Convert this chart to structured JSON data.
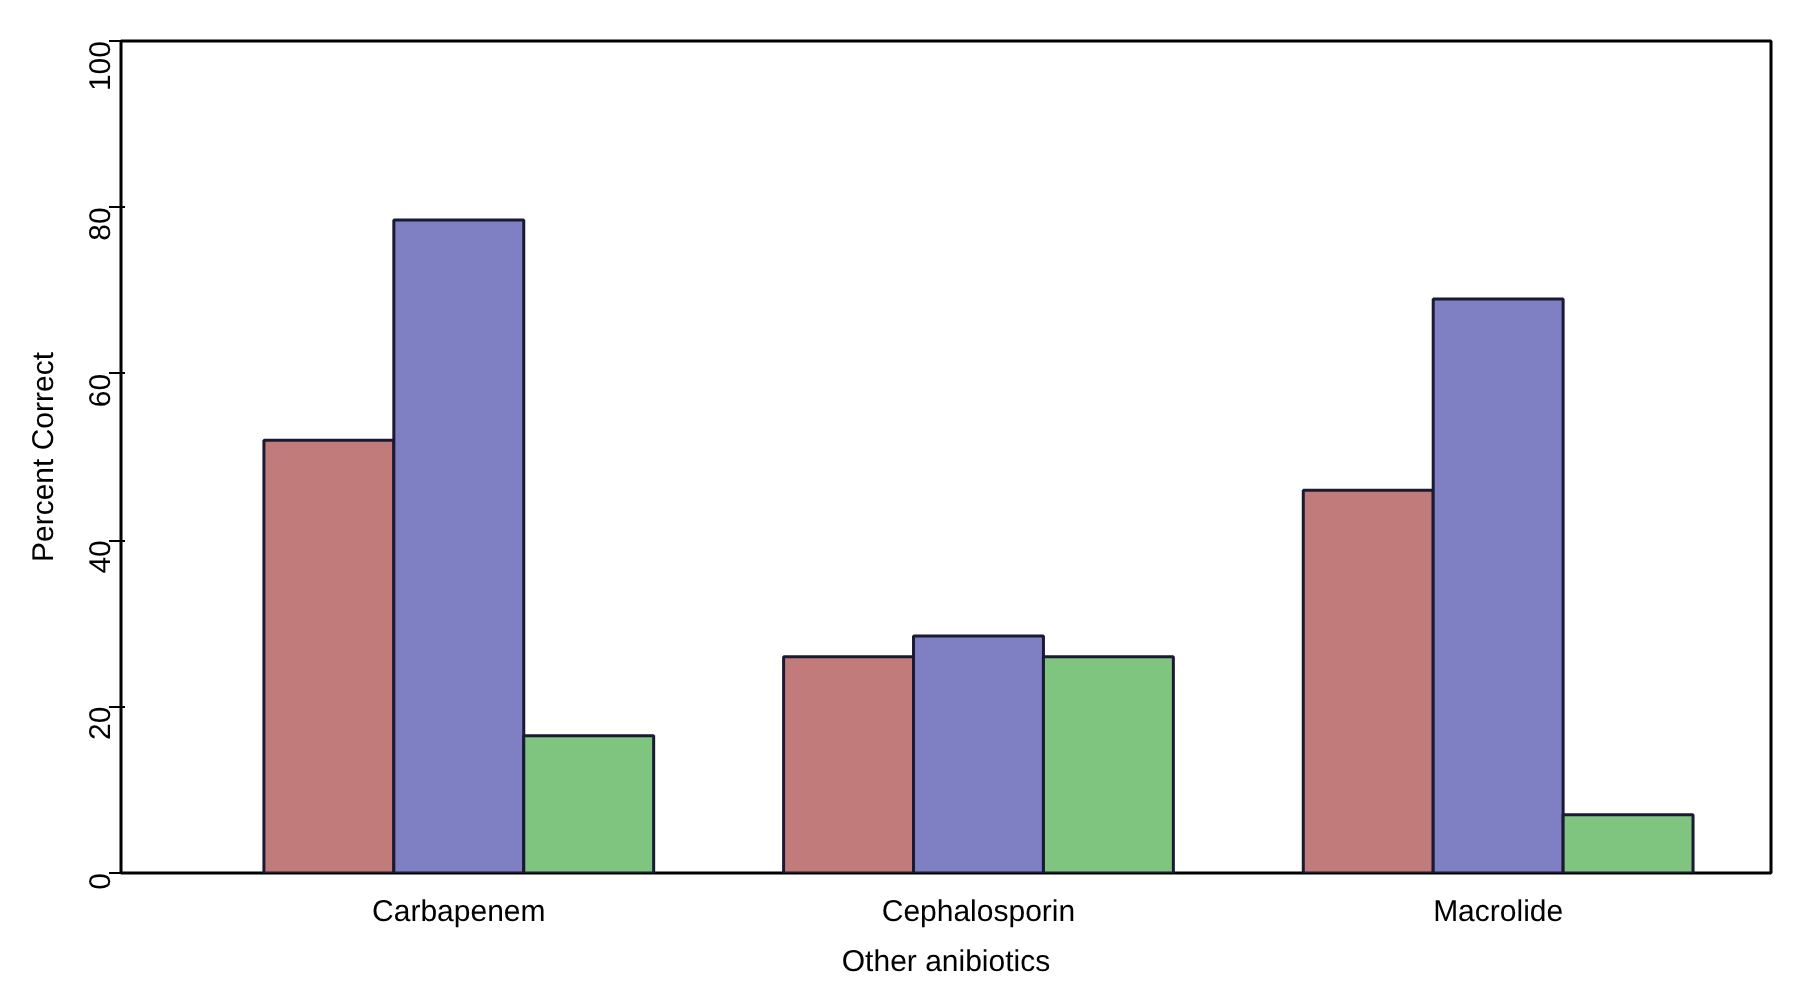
{
  "chart_data": {
    "type": "bar",
    "xlabel": "Other anibiotics",
    "ylabel": "Percent Correct",
    "categories": [
      "Carbapenem",
      "Cephalosporin",
      "Macrolide"
    ],
    "series": [
      {
        "color": "#c27b7b",
        "values": [
          52,
          26,
          46
        ]
      },
      {
        "color": "#7f7fc4",
        "values": [
          78.5,
          28.5,
          69
        ]
      },
      {
        "color": "#7fc47f",
        "values": [
          16.5,
          26,
          7
        ]
      }
    ],
    "ylim": [
      0,
      100
    ],
    "yticks": [
      0,
      20,
      40,
      60,
      80,
      100
    ],
    "grid": false
  }
}
